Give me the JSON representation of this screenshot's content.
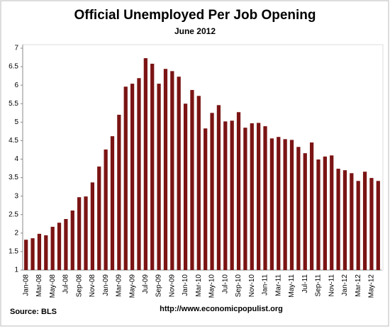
{
  "chart_data": {
    "type": "bar",
    "title": "Official Unemployed Per Job Opening",
    "subtitle": "June 2012",
    "source": "Source:  BLS",
    "url": "http://www.economicpopulist.org",
    "categories": [
      "Jan-08",
      null,
      "Mar-08",
      null,
      "May-08",
      null,
      "Jul-08",
      null,
      "Sep-08",
      null,
      "Nov-08",
      null,
      "Jan-09",
      null,
      "Mar-09",
      null,
      "May-09",
      null,
      "Jul-09",
      null,
      "Sep-09",
      null,
      "Nov-09",
      null,
      "Jan-10",
      null,
      "Mar-10",
      null,
      "May-10",
      null,
      "Jul-10",
      null,
      "Sep-10",
      null,
      "Nov-10",
      null,
      "Jan-11",
      null,
      "Mar-11",
      null,
      "May-11",
      null,
      "Jul-11",
      null,
      "Sep-11",
      null,
      "Nov-11",
      null,
      "Jan-12",
      null,
      "Mar-12",
      null,
      "May-12",
      null
    ],
    "values": [
      1.82,
      1.86,
      1.98,
      1.94,
      2.17,
      2.28,
      2.38,
      2.61,
      2.97,
      2.99,
      3.37,
      3.8,
      4.26,
      4.62,
      5.2,
      5.96,
      6.04,
      6.19,
      6.73,
      6.58,
      6.04,
      6.44,
      6.38,
      6.23,
      5.5,
      5.87,
      5.71,
      4.83,
      5.25,
      5.46,
      5.02,
      5.04,
      5.27,
      4.85,
      4.97,
      4.98,
      4.89,
      4.56,
      4.6,
      4.54,
      4.52,
      4.33,
      4.16,
      4.45,
      3.99,
      4.07,
      4.1,
      3.74,
      3.7,
      3.62,
      3.41,
      3.66,
      3.49,
      3.41
    ],
    "color": "#7b1414",
    "ylim": [
      1,
      7
    ],
    "yticks": [
      1,
      1.5,
      2,
      2.5,
      3,
      3.5,
      4,
      4.5,
      5,
      5.5,
      6,
      6.5,
      7
    ],
    "grid": false
  }
}
